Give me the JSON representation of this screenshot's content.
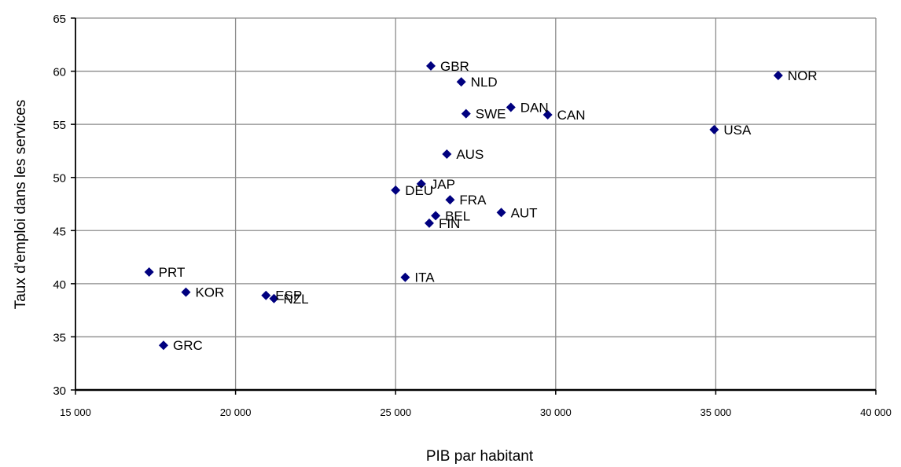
{
  "chart_data": {
    "type": "scatter",
    "title": "",
    "xlabel": "PIB par habitant",
    "ylabel": "Taux d'emploi dans les services",
    "xlim": [
      15000,
      40000
    ],
    "ylim": [
      30,
      65
    ],
    "x_ticks": [
      15000,
      20000,
      25000,
      30000,
      35000,
      40000
    ],
    "x_tick_labels": [
      "15 000",
      "20 000",
      "25 000",
      "30 000",
      "35 000",
      "40 000"
    ],
    "y_ticks": [
      30,
      35,
      40,
      45,
      50,
      55,
      60,
      65
    ],
    "y_tick_labels": [
      "30",
      "35",
      "40",
      "45",
      "50",
      "55",
      "60",
      "65"
    ],
    "grid": true,
    "legend": "none",
    "marker": "diamond",
    "marker_color": "#00007F",
    "points": [
      {
        "label": "GBR",
        "x": 26100,
        "y": 60.5
      },
      {
        "label": "NLD",
        "x": 27050,
        "y": 59.0
      },
      {
        "label": "NOR",
        "x": 36950,
        "y": 59.6
      },
      {
        "label": "DAN",
        "x": 28600,
        "y": 56.6
      },
      {
        "label": "SWE",
        "x": 27200,
        "y": 56.0
      },
      {
        "label": "CAN",
        "x": 29750,
        "y": 55.9
      },
      {
        "label": "USA",
        "x": 34950,
        "y": 54.5
      },
      {
        "label": "AUS",
        "x": 26600,
        "y": 52.2
      },
      {
        "label": "JAP",
        "x": 25800,
        "y": 49.4
      },
      {
        "label": "DEU",
        "x": 25000,
        "y": 48.8
      },
      {
        "label": "FRA",
        "x": 26700,
        "y": 47.9
      },
      {
        "label": "AUT",
        "x": 28300,
        "y": 46.7
      },
      {
        "label": "BEL",
        "x": 26250,
        "y": 46.4
      },
      {
        "label": "FIN",
        "x": 26050,
        "y": 45.7
      },
      {
        "label": "ITA",
        "x": 25300,
        "y": 40.6
      },
      {
        "label": "PRT",
        "x": 17300,
        "y": 41.1
      },
      {
        "label": "KOR",
        "x": 18450,
        "y": 39.2
      },
      {
        "label": "ESP",
        "x": 20950,
        "y": 38.9
      },
      {
        "label": "NZL",
        "x": 21200,
        "y": 38.6
      },
      {
        "label": "GRC",
        "x": 17750,
        "y": 34.2
      }
    ]
  }
}
